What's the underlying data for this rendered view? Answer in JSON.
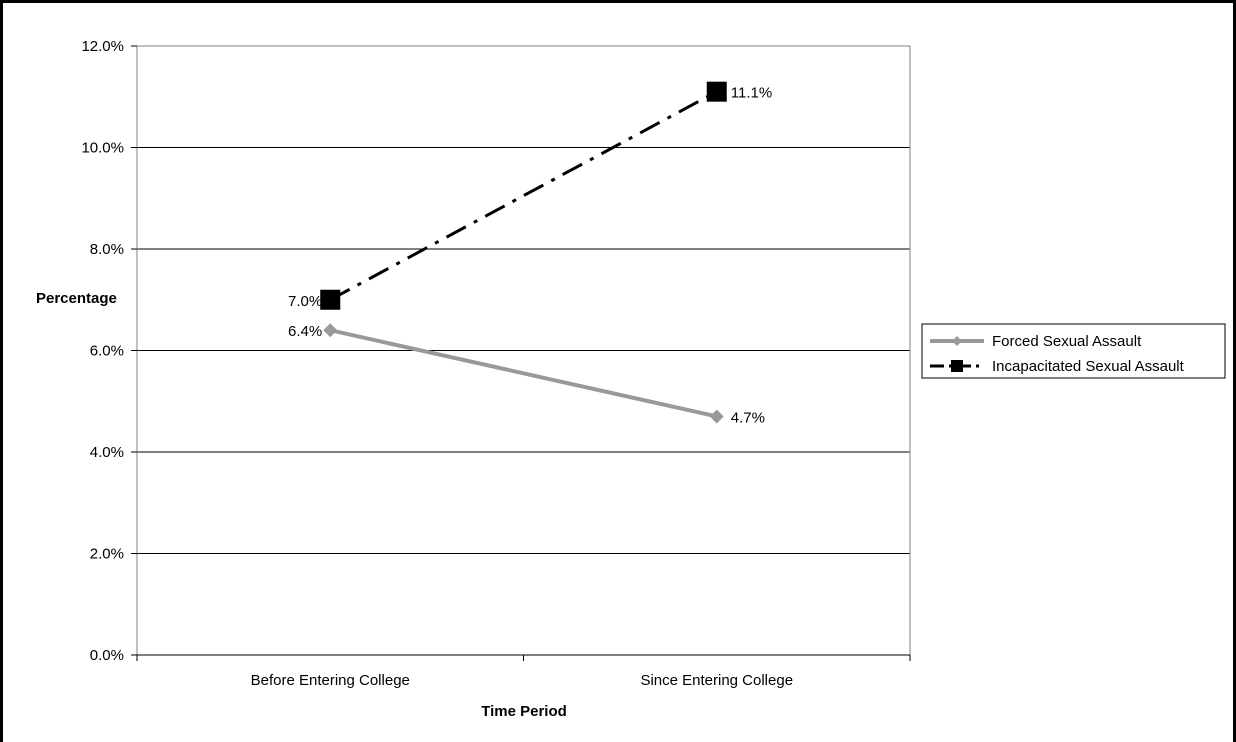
{
  "chart_data": {
    "type": "line",
    "title": "",
    "xlabel": "Time Period",
    "ylabel": "Percentage",
    "categories": [
      "Before Entering College",
      "Since Entering College"
    ],
    "ylim": [
      0,
      0.12
    ],
    "yticks": [
      0,
      0.02,
      0.04,
      0.06,
      0.08,
      0.1,
      0.12
    ],
    "ytick_labels": [
      "0.0%",
      "2.0%",
      "4.0%",
      "6.0%",
      "8.0%",
      "10.0%",
      "12.0%"
    ],
    "grid": true,
    "legend_position": "right",
    "series": [
      {
        "name": "Forced Sexual Assault",
        "values": [
          0.064,
          0.047
        ],
        "labels": [
          "6.4%",
          "4.7%"
        ],
        "color": "#999999",
        "line_style": "solid",
        "marker": "diamond"
      },
      {
        "name": "Incapacitated Sexual Assault",
        "values": [
          0.07,
          0.111
        ],
        "labels": [
          "7.0%",
          "11.1%"
        ],
        "color": "#000000",
        "line_style": "dash-dot",
        "marker": "square"
      }
    ]
  }
}
